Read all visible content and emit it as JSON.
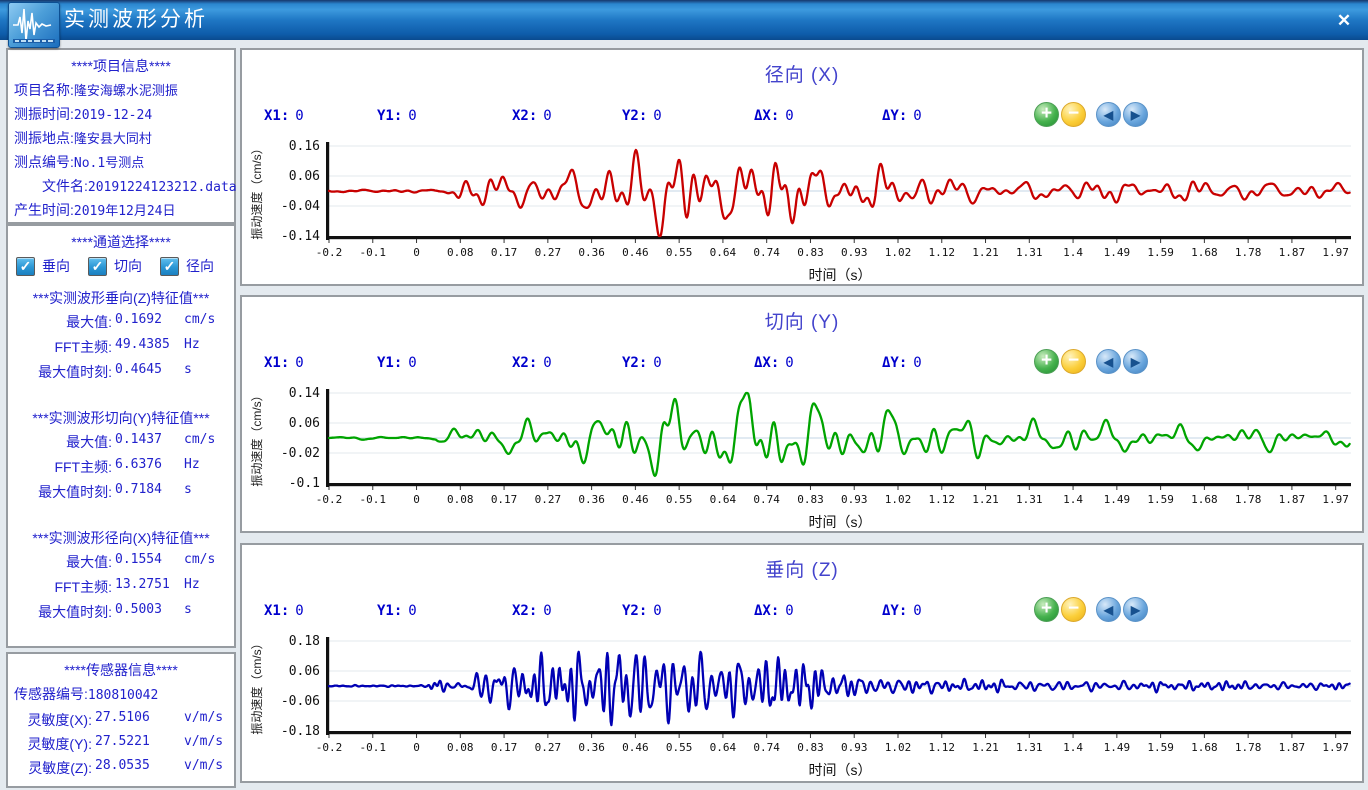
{
  "window": {
    "title": "实测波形分析"
  },
  "icons": {
    "close": "✕",
    "check": "✓",
    "zoom_in": "+",
    "zoom_out": "−",
    "pan_left": "◀",
    "pan_right": "▶"
  },
  "sidebar": {
    "project_info": {
      "header": "****项目信息****",
      "lines": [
        {
          "label": "项目名称:",
          "value": "隆安海螺水泥测振"
        },
        {
          "label": "测振时间:",
          "value": "2019-12-24"
        },
        {
          "label": "测振地点:",
          "value": "隆安县大同村"
        },
        {
          "label": "测点编号:",
          "value": "No.1号测点"
        },
        {
          "label": "文件名:",
          "value": "20191224123212.data"
        },
        {
          "label": "产生时间:",
          "value": "2019年12月24日"
        }
      ]
    },
    "channel_select": {
      "header": "****通道选择****",
      "options": [
        {
          "label": "垂向",
          "checked": true
        },
        {
          "label": "切向",
          "checked": true
        },
        {
          "label": "径向",
          "checked": true
        }
      ]
    },
    "feature_sections": [
      {
        "header": "***实测波形垂向(Z)特征值***",
        "rows": [
          {
            "label": "最大值:",
            "value": "0.1692",
            "unit": "cm/s"
          },
          {
            "label": "FFT主频:",
            "value": "49.4385",
            "unit": "Hz"
          },
          {
            "label": "最大值时刻:",
            "value": "0.4645",
            "unit": "s"
          }
        ]
      },
      {
        "header": "***实测波形切向(Y)特征值***",
        "rows": [
          {
            "label": "最大值:",
            "value": "0.1437",
            "unit": "cm/s"
          },
          {
            "label": "FFT主频:",
            "value": "6.6376",
            "unit": "Hz"
          },
          {
            "label": "最大值时刻:",
            "value": "0.7184",
            "unit": "s"
          }
        ]
      },
      {
        "header": "***实测波形径向(X)特征值***",
        "rows": [
          {
            "label": "最大值:",
            "value": "0.1554",
            "unit": "cm/s"
          },
          {
            "label": "FFT主频:",
            "value": "13.2751",
            "unit": "Hz"
          },
          {
            "label": "最大值时刻:",
            "value": "0.5003",
            "unit": "s"
          }
        ]
      }
    ],
    "sensor_info": {
      "header": "****传感器信息****",
      "id_line": {
        "label": "传感器编号:",
        "value": "180810042"
      },
      "rows": [
        {
          "label": "灵敏度(X):",
          "value": "27.5106",
          "unit": "v/m/s"
        },
        {
          "label": "灵敏度(Y):",
          "value": "27.5221",
          "unit": "v/m/s"
        },
        {
          "label": "灵敏度(Z):",
          "value": "28.0535",
          "unit": "v/m/s"
        }
      ]
    }
  },
  "chart_data": [
    {
      "type": "line",
      "title": "径向 (X)",
      "channel": "X",
      "color": "#c80000",
      "xlabel": "时间（s）",
      "ylabel": "振动速度（cm/s）",
      "xlim": [
        -0.2,
        2.0
      ],
      "ylim": [
        -0.14,
        0.16
      ],
      "y_ticks": [
        0.16,
        0.06,
        -0.04,
        -0.14
      ],
      "x_tick_labels": [
        "-0.2",
        "-0.1",
        "0",
        "0.08",
        "0.17",
        "0.27",
        "0.36",
        "0.46",
        "0.55",
        "0.64",
        "0.74",
        "0.83",
        "0.93",
        "1.02",
        "1.12",
        "1.21",
        "1.31",
        "1.4",
        "1.49",
        "1.59",
        "1.68",
        "1.78",
        "1.87",
        "1.97"
      ],
      "grid": true,
      "legend": "none",
      "max_value_cm_s": 0.1554,
      "fft_main_freq_hz": 13.2751,
      "max_value_time_s": 0.5003,
      "baseline": 0.01,
      "markers": [
        {
          "id": "x1",
          "label": "X1:",
          "value": "0"
        },
        {
          "id": "y1",
          "label": "Y1:",
          "value": "0"
        },
        {
          "id": "x2",
          "label": "X2:",
          "value": "0"
        },
        {
          "id": "y2",
          "label": "Y2:",
          "value": "0"
        },
        {
          "id": "dx",
          "label": "ΔX:",
          "value": "0"
        },
        {
          "id": "dy",
          "label": "ΔY:",
          "value": "0"
        }
      ],
      "synth": {
        "seed": 7,
        "freqs": [
          13.2751,
          7.2,
          22.5
        ],
        "weights": [
          0.55,
          0.28,
          0.3
        ],
        "noise": 0.45,
        "noise_band": [
          25,
          45
        ],
        "envelope": [
          [
            -0.2,
            0.004
          ],
          [
            0.03,
            0.004
          ],
          [
            0.05,
            0.02
          ],
          [
            0.08,
            0.045
          ],
          [
            0.15,
            0.05
          ],
          [
            0.22,
            0.06
          ],
          [
            0.3,
            0.07
          ],
          [
            0.38,
            0.08
          ],
          [
            0.44,
            0.09
          ],
          [
            0.5,
            0.17
          ],
          [
            0.55,
            0.1
          ],
          [
            0.62,
            0.09
          ],
          [
            0.7,
            0.11
          ],
          [
            0.76,
            0.12
          ],
          [
            0.82,
            0.09
          ],
          [
            0.9,
            0.07
          ],
          [
            0.98,
            0.07
          ],
          [
            1.05,
            0.05
          ],
          [
            1.15,
            0.04
          ],
          [
            1.3,
            0.03
          ],
          [
            1.45,
            0.035
          ],
          [
            1.6,
            0.03
          ],
          [
            1.75,
            0.035
          ],
          [
            1.9,
            0.025
          ],
          [
            2.0,
            0.022
          ]
        ]
      }
    },
    {
      "type": "line",
      "title": "切向 (Y)",
      "channel": "Y",
      "color": "#00a400",
      "xlabel": "时间（s）",
      "ylabel": "振动速度（cm/s）",
      "xlim": [
        -0.2,
        2.0
      ],
      "ylim": [
        -0.1,
        0.14
      ],
      "y_ticks": [
        0.14,
        0.06,
        -0.02,
        -0.1
      ],
      "x_tick_labels": [
        "-0.2",
        "-0.1",
        "0",
        "0.08",
        "0.17",
        "0.27",
        "0.36",
        "0.46",
        "0.55",
        "0.64",
        "0.74",
        "0.83",
        "0.93",
        "1.02",
        "1.12",
        "1.21",
        "1.31",
        "1.4",
        "1.49",
        "1.59",
        "1.68",
        "1.78",
        "1.87",
        "1.97"
      ],
      "grid": true,
      "legend": "none",
      "max_value_cm_s": 0.1437,
      "fft_main_freq_hz": 6.6376,
      "max_value_time_s": 0.7184,
      "baseline": 0.02,
      "markers": [
        {
          "id": "x1",
          "label": "X1:",
          "value": "0"
        },
        {
          "id": "y1",
          "label": "Y1:",
          "value": "0"
        },
        {
          "id": "x2",
          "label": "X2:",
          "value": "0"
        },
        {
          "id": "y2",
          "label": "Y2:",
          "value": "0"
        },
        {
          "id": "dx",
          "label": "ΔX:",
          "value": "0"
        },
        {
          "id": "dy",
          "label": "ΔY:",
          "value": "0"
        }
      ],
      "synth": {
        "seed": 13,
        "freqs": [
          6.6376,
          12.8,
          19.0
        ],
        "weights": [
          0.45,
          0.4,
          0.28
        ],
        "noise": 0.45,
        "noise_band": [
          22,
          40
        ],
        "envelope": [
          [
            -0.2,
            0.004
          ],
          [
            0.03,
            0.004
          ],
          [
            0.05,
            0.025
          ],
          [
            0.1,
            0.04
          ],
          [
            0.2,
            0.045
          ],
          [
            0.3,
            0.055
          ],
          [
            0.4,
            0.06
          ],
          [
            0.48,
            0.09
          ],
          [
            0.52,
            0.11
          ],
          [
            0.58,
            0.07
          ],
          [
            0.65,
            0.09
          ],
          [
            0.72,
            0.16
          ],
          [
            0.78,
            0.11
          ],
          [
            0.85,
            0.08
          ],
          [
            0.95,
            0.07
          ],
          [
            1.05,
            0.06
          ],
          [
            1.15,
            0.045
          ],
          [
            1.3,
            0.04
          ],
          [
            1.45,
            0.045
          ],
          [
            1.6,
            0.035
          ],
          [
            1.75,
            0.03
          ],
          [
            1.9,
            0.025
          ],
          [
            2.0,
            0.022
          ]
        ]
      }
    },
    {
      "type": "line",
      "title": "垂向 (Z)",
      "channel": "Z",
      "color": "#0000b4",
      "xlabel": "时间（s）",
      "ylabel": "振动速度（cm/s）",
      "xlim": [
        -0.2,
        2.0
      ],
      "ylim": [
        -0.18,
        0.18
      ],
      "y_ticks": [
        0.18,
        0.06,
        -0.06,
        -0.18
      ],
      "x_tick_labels": [
        "-0.2",
        "-0.1",
        "0",
        "0.08",
        "0.17",
        "0.27",
        "0.36",
        "0.46",
        "0.55",
        "0.64",
        "0.74",
        "0.83",
        "0.93",
        "1.02",
        "1.12",
        "1.21",
        "1.31",
        "1.4",
        "1.49",
        "1.59",
        "1.68",
        "1.78",
        "1.87",
        "1.97"
      ],
      "grid": true,
      "legend": "none",
      "max_value_cm_s": 0.1692,
      "fft_main_freq_hz": 49.4385,
      "max_value_time_s": 0.4645,
      "baseline": 0.0,
      "markers": [
        {
          "id": "x1",
          "label": "X1:",
          "value": "0"
        },
        {
          "id": "y1",
          "label": "Y1:",
          "value": "0"
        },
        {
          "id": "x2",
          "label": "X2:",
          "value": "0"
        },
        {
          "id": "y2",
          "label": "Y2:",
          "value": "0"
        },
        {
          "id": "dx",
          "label": "ΔX:",
          "value": "0"
        },
        {
          "id": "dy",
          "label": "ΔY:",
          "value": "0"
        }
      ],
      "synth": {
        "seed": 21,
        "freqs": [
          49.4385,
          23.0,
          35.0
        ],
        "weights": [
          0.5,
          0.3,
          0.25
        ],
        "noise": 0.4,
        "noise_band": [
          55,
          80
        ],
        "envelope": [
          [
            -0.2,
            0.003
          ],
          [
            0.01,
            0.003
          ],
          [
            0.02,
            0.02
          ],
          [
            0.04,
            0.03
          ],
          [
            0.06,
            0.012
          ],
          [
            0.1,
            0.015
          ],
          [
            0.12,
            0.06
          ],
          [
            0.15,
            0.1
          ],
          [
            0.2,
            0.09
          ],
          [
            0.25,
            0.11
          ],
          [
            0.3,
            0.12
          ],
          [
            0.35,
            0.13
          ],
          [
            0.4,
            0.16
          ],
          [
            0.46,
            0.19
          ],
          [
            0.52,
            0.14
          ],
          [
            0.58,
            0.16
          ],
          [
            0.64,
            0.12
          ],
          [
            0.7,
            0.13
          ],
          [
            0.76,
            0.11
          ],
          [
            0.82,
            0.1
          ],
          [
            0.88,
            0.06
          ],
          [
            0.95,
            0.04
          ],
          [
            1.05,
            0.03
          ],
          [
            1.15,
            0.025
          ],
          [
            1.3,
            0.022
          ],
          [
            1.5,
            0.02
          ],
          [
            1.7,
            0.018
          ],
          [
            1.9,
            0.015
          ],
          [
            2.0,
            0.014
          ]
        ]
      }
    }
  ]
}
